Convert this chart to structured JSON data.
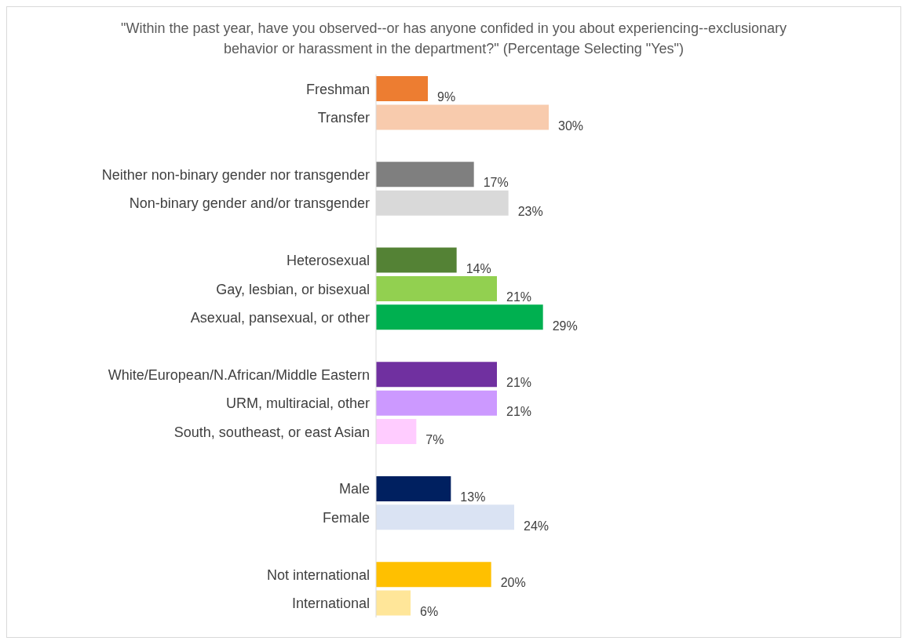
{
  "chart_data": {
    "type": "bar",
    "orientation": "horizontal",
    "title": "\"Within the past year, have you observed--or has anyone confided in you about experiencing--exclusionary behavior or harassment in the department?\" (Percentage Selecting \"Yes\")",
    "categories": [
      "Freshman",
      "Transfer",
      null,
      "Neither non-binary gender nor transgender",
      "Non-binary gender and/or transgender",
      null,
      "Heterosexual",
      "Gay, lesbian, or bisexual",
      "Asexual, pansexual, or other",
      null,
      "White/European/N.African/Middle Eastern",
      "URM, multiracial, other",
      "South, southeast, or east Asian",
      null,
      "Male",
      "Female",
      null,
      "Not international",
      "International"
    ],
    "values": [
      9,
      30,
      null,
      17,
      23,
      null,
      14,
      21,
      29,
      null,
      21,
      21,
      7,
      null,
      13,
      24,
      null,
      20,
      6
    ],
    "value_labels": [
      "9%",
      "30%",
      null,
      "17%",
      "23%",
      null,
      "14%",
      "21%",
      "29%",
      null,
      "21%",
      "21%",
      "7%",
      null,
      "13%",
      "24%",
      null,
      "20%",
      "6%"
    ],
    "colors": [
      "#ed7d31",
      "#f8cbad",
      null,
      "#7f7f7f",
      "#d9d9d9",
      null,
      "#548235",
      "#92d050",
      "#00b050",
      null,
      "#7030a0",
      "#cc99ff",
      "#ffccff",
      null,
      "#002060",
      "#dae3f3",
      null,
      "#ffc000",
      "#ffe699"
    ],
    "grid": false,
    "legend": false
  }
}
